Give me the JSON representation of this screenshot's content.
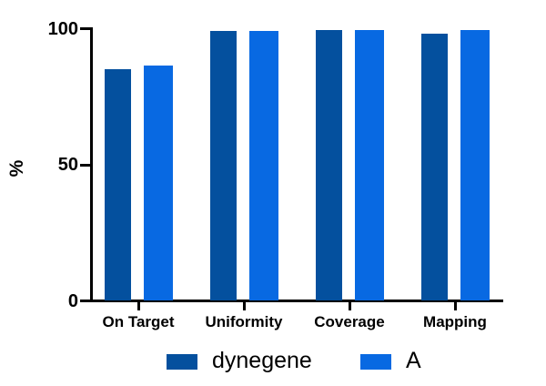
{
  "chart_data": {
    "type": "bar",
    "title": "",
    "xlabel": "",
    "ylabel": "%",
    "categories": [
      "On Target",
      "Uniformity",
      "Coverage",
      "Mapping"
    ],
    "series": [
      {
        "name": "dynegene",
        "color": "#04509e",
        "values": [
          85,
          99,
          99.5,
          98
        ]
      },
      {
        "name": "A",
        "color": "#0869e2",
        "values": [
          86.5,
          99,
          99.5,
          99.5
        ]
      }
    ],
    "ylim": [
      0,
      100
    ],
    "yticks": [
      0,
      50,
      100
    ],
    "grid": false,
    "legend_position": "bottom",
    "axis_color": "#000000",
    "text_color": "#000000"
  }
}
